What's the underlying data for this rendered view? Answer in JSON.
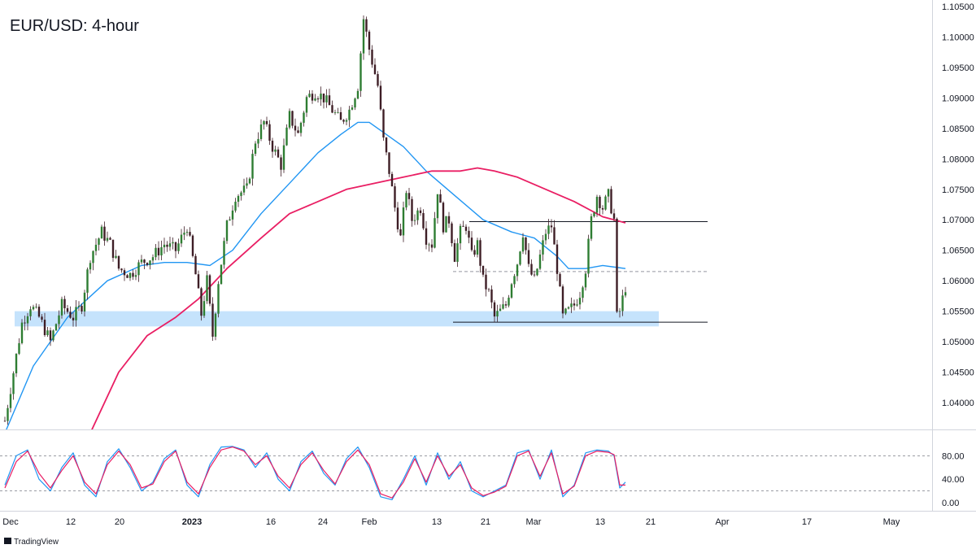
{
  "chart_data": {
    "type": "candlestick",
    "title": "EUR/USD: 4-hour",
    "brand": "TradingView",
    "ylim": [
      1.035,
      1.105
    ],
    "y_ticks": [
      "1.10500",
      "1.10000",
      "1.09500",
      "1.09000",
      "1.08500",
      "1.08000",
      "1.07500",
      "1.07000",
      "1.06500",
      "1.06000",
      "1.05500",
      "1.05000",
      "1.04500",
      "1.04000"
    ],
    "x_ticks": [
      {
        "label": "Dec",
        "bold": false
      },
      {
        "label": "12",
        "bold": false
      },
      {
        "label": "20",
        "bold": false
      },
      {
        "label": "2023",
        "bold": true
      },
      {
        "label": "16",
        "bold": false
      },
      {
        "label": "24",
        "bold": false
      },
      {
        "label": "Feb",
        "bold": false
      },
      {
        "label": "13",
        "bold": false
      },
      {
        "label": "21",
        "bold": false
      },
      {
        "label": "Mar",
        "bold": false
      },
      {
        "label": "13",
        "bold": false
      },
      {
        "label": "21",
        "bold": false
      },
      {
        "label": "Apr",
        "bold": false
      },
      {
        "label": "17",
        "bold": false
      },
      {
        "label": "May",
        "bold": false
      }
    ],
    "price_path": [
      [
        0,
        1.037
      ],
      [
        3,
        1.045
      ],
      [
        6,
        1.053
      ],
      [
        9,
        1.056
      ],
      [
        12,
        1.054
      ],
      [
        16,
        1.05
      ],
      [
        20,
        1.056
      ],
      [
        24,
        1.054
      ],
      [
        27,
        1.056
      ],
      [
        30,
        1.064
      ],
      [
        34,
        1.068
      ],
      [
        37,
        1.066
      ],
      [
        40,
        1.062
      ],
      [
        44,
        1.061
      ],
      [
        48,
        1.063
      ],
      [
        52,
        1.064
      ],
      [
        56,
        1.066
      ],
      [
        60,
        1.065
      ],
      [
        64,
        1.069
      ],
      [
        67,
        1.061
      ],
      [
        69,
        1.0545
      ],
      [
        71,
        1.06
      ],
      [
        73,
        1.051
      ],
      [
        75,
        1.06
      ],
      [
        78,
        1.069
      ],
      [
        81,
        1.074
      ],
      [
        85,
        1.075
      ],
      [
        88,
        1.083
      ],
      [
        91,
        1.086
      ],
      [
        94,
        1.082
      ],
      [
        97,
        1.079
      ],
      [
        100,
        1.087
      ],
      [
        103,
        1.084
      ],
      [
        106,
        1.09
      ],
      [
        109,
        1.091
      ],
      [
        112,
        1.09
      ],
      [
        115,
        1.088
      ],
      [
        118,
        1.086
      ],
      [
        121,
        1.088
      ],
      [
        124,
        1.092
      ],
      [
        126,
        1.103
      ],
      [
        128,
        1.098
      ],
      [
        131,
        1.092
      ],
      [
        133,
        1.083
      ],
      [
        135,
        1.078
      ],
      [
        137,
        1.072
      ],
      [
        139,
        1.067
      ],
      [
        141,
        1.075
      ],
      [
        143,
        1.07
      ],
      [
        146,
        1.072
      ],
      [
        148,
        1.067
      ],
      [
        150,
        1.066
      ],
      [
        152,
        1.075
      ],
      [
        154,
        1.069
      ],
      [
        156,
        1.07
      ],
      [
        158,
        1.064
      ],
      [
        160,
        1.068
      ],
      [
        162,
        1.069
      ],
      [
        164,
        1.064
      ],
      [
        166,
        1.066
      ],
      [
        168,
        1.06
      ],
      [
        170,
        1.058
      ],
      [
        172,
        1.054
      ],
      [
        174,
        1.055
      ],
      [
        176,
        1.056
      ],
      [
        178,
        1.06
      ],
      [
        180,
        1.063
      ],
      [
        182,
        1.068
      ],
      [
        184,
        1.062
      ],
      [
        186,
        1.06
      ],
      [
        188,
        1.064
      ],
      [
        190,
        1.068
      ],
      [
        192,
        1.069
      ],
      [
        194,
        1.062
      ],
      [
        196,
        1.054
      ],
      [
        198,
        1.055
      ],
      [
        200,
        1.056
      ],
      [
        202,
        1.058
      ],
      [
        204,
        1.062
      ],
      [
        206,
        1.07
      ],
      [
        208,
        1.074
      ],
      [
        210,
        1.072
      ],
      [
        212,
        1.074
      ],
      [
        214,
        1.07
      ],
      [
        215,
        1.054
      ],
      [
        216,
        1.055
      ],
      [
        218,
        1.059
      ]
    ],
    "ema_blue": [
      [
        0,
        1.035
      ],
      [
        10,
        1.046
      ],
      [
        22,
        1.054
      ],
      [
        36,
        1.06
      ],
      [
        48,
        1.0625
      ],
      [
        56,
        1.063
      ],
      [
        64,
        1.063
      ],
      [
        72,
        1.0625
      ],
      [
        80,
        1.065
      ],
      [
        90,
        1.071
      ],
      [
        100,
        1.076
      ],
      [
        110,
        1.081
      ],
      [
        118,
        1.084
      ],
      [
        124,
        1.086
      ],
      [
        128,
        1.086
      ],
      [
        134,
        1.084
      ],
      [
        140,
        1.082
      ],
      [
        148,
        1.078
      ],
      [
        158,
        1.074
      ],
      [
        168,
        1.07
      ],
      [
        178,
        1.068
      ],
      [
        186,
        1.067
      ],
      [
        194,
        1.064
      ],
      [
        198,
        1.062
      ],
      [
        204,
        1.062
      ],
      [
        210,
        1.0625
      ],
      [
        218,
        1.062
      ]
    ],
    "ema_pink": [
      [
        30,
        1.035
      ],
      [
        40,
        1.045
      ],
      [
        50,
        1.051
      ],
      [
        60,
        1.054
      ],
      [
        68,
        1.057
      ],
      [
        78,
        1.062
      ],
      [
        90,
        1.067
      ],
      [
        100,
        1.071
      ],
      [
        110,
        1.073
      ],
      [
        120,
        1.075
      ],
      [
        130,
        1.076
      ],
      [
        140,
        1.077
      ],
      [
        150,
        1.078
      ],
      [
        160,
        1.078
      ],
      [
        166,
        1.0785
      ],
      [
        172,
        1.078
      ],
      [
        180,
        1.077
      ],
      [
        190,
        1.075
      ],
      [
        200,
        1.073
      ],
      [
        210,
        1.0705
      ],
      [
        218,
        1.0695
      ]
    ],
    "resistance_level": 1.0697,
    "mid_level": 1.0615,
    "support_level": 1.0532,
    "support_zone": [
      1.0525,
      1.055
    ],
    "stoch_ticks": [
      "80.00",
      "40.00",
      "0.00"
    ],
    "stoch_levels": [
      80,
      20
    ],
    "stoch_k": [
      [
        0,
        30
      ],
      [
        4,
        80
      ],
      [
        8,
        90
      ],
      [
        12,
        40
      ],
      [
        16,
        20
      ],
      [
        20,
        60
      ],
      [
        24,
        85
      ],
      [
        28,
        30
      ],
      [
        32,
        10
      ],
      [
        36,
        70
      ],
      [
        40,
        92
      ],
      [
        44,
        60
      ],
      [
        48,
        20
      ],
      [
        52,
        35
      ],
      [
        56,
        75
      ],
      [
        60,
        90
      ],
      [
        64,
        30
      ],
      [
        68,
        10
      ],
      [
        72,
        65
      ],
      [
        76,
        95
      ],
      [
        80,
        96
      ],
      [
        84,
        90
      ],
      [
        88,
        60
      ],
      [
        92,
        85
      ],
      [
        96,
        40
      ],
      [
        100,
        20
      ],
      [
        104,
        70
      ],
      [
        108,
        88
      ],
      [
        112,
        50
      ],
      [
        116,
        30
      ],
      [
        120,
        75
      ],
      [
        124,
        95
      ],
      [
        128,
        60
      ],
      [
        132,
        10
      ],
      [
        136,
        5
      ],
      [
        140,
        40
      ],
      [
        144,
        80
      ],
      [
        148,
        30
      ],
      [
        152,
        85
      ],
      [
        156,
        40
      ],
      [
        160,
        70
      ],
      [
        164,
        20
      ],
      [
        168,
        10
      ],
      [
        172,
        20
      ],
      [
        176,
        30
      ],
      [
        180,
        85
      ],
      [
        184,
        90
      ],
      [
        188,
        40
      ],
      [
        192,
        90
      ],
      [
        196,
        10
      ],
      [
        200,
        30
      ],
      [
        204,
        85
      ],
      [
        208,
        90
      ],
      [
        212,
        88
      ],
      [
        214,
        80
      ],
      [
        216,
        25
      ],
      [
        218,
        35
      ]
    ],
    "stoch_d": [
      [
        0,
        25
      ],
      [
        4,
        70
      ],
      [
        8,
        88
      ],
      [
        12,
        50
      ],
      [
        16,
        25
      ],
      [
        20,
        55
      ],
      [
        24,
        80
      ],
      [
        28,
        35
      ],
      [
        32,
        15
      ],
      [
        36,
        65
      ],
      [
        40,
        88
      ],
      [
        44,
        65
      ],
      [
        48,
        25
      ],
      [
        52,
        32
      ],
      [
        56,
        70
      ],
      [
        60,
        88
      ],
      [
        64,
        35
      ],
      [
        68,
        15
      ],
      [
        72,
        60
      ],
      [
        76,
        90
      ],
      [
        80,
        95
      ],
      [
        84,
        88
      ],
      [
        88,
        65
      ],
      [
        92,
        80
      ],
      [
        96,
        45
      ],
      [
        100,
        25
      ],
      [
        104,
        65
      ],
      [
        108,
        85
      ],
      [
        112,
        55
      ],
      [
        116,
        32
      ],
      [
        120,
        70
      ],
      [
        124,
        90
      ],
      [
        128,
        65
      ],
      [
        132,
        15
      ],
      [
        136,
        8
      ],
      [
        140,
        35
      ],
      [
        144,
        75
      ],
      [
        148,
        35
      ],
      [
        152,
        80
      ],
      [
        156,
        45
      ],
      [
        160,
        65
      ],
      [
        164,
        25
      ],
      [
        168,
        12
      ],
      [
        172,
        18
      ],
      [
        176,
        28
      ],
      [
        180,
        80
      ],
      [
        184,
        88
      ],
      [
        188,
        45
      ],
      [
        192,
        85
      ],
      [
        196,
        15
      ],
      [
        200,
        28
      ],
      [
        204,
        80
      ],
      [
        208,
        88
      ],
      [
        212,
        86
      ],
      [
        214,
        82
      ],
      [
        216,
        30
      ],
      [
        218,
        30
      ]
    ],
    "colors": {
      "bull": "#2e7d32",
      "bear": "#3e1e26",
      "ema_blue": "#2196f3",
      "ema_pink": "#e91e63",
      "level": "#131722",
      "zone": "#bbdefb",
      "stoch_k": "#2196f3",
      "stoch_d": "#e91e63"
    }
  }
}
